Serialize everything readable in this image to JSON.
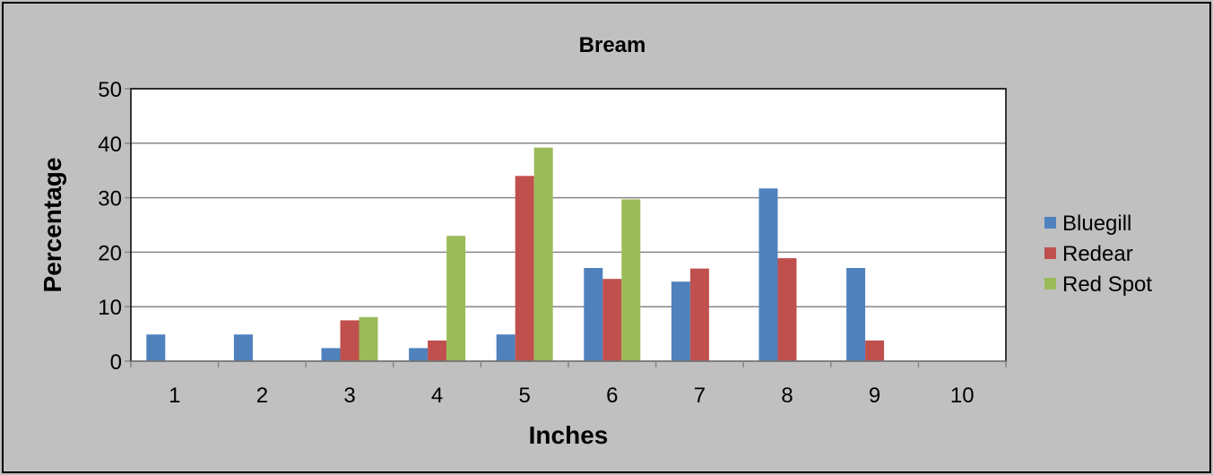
{
  "chart_data": {
    "type": "bar",
    "title": "Bream",
    "xlabel": "Inches",
    "ylabel": "Percentage",
    "categories": [
      "1",
      "2",
      "3",
      "4",
      "5",
      "6",
      "7",
      "8",
      "9",
      "10"
    ],
    "ylim": [
      0,
      50
    ],
    "yticks": [
      0,
      10,
      20,
      30,
      40,
      50
    ],
    "grid": true,
    "legend_position": "right",
    "series": [
      {
        "name": "Bluegill",
        "color": "#4f81bd",
        "values": [
          4.9,
          4.9,
          2.4,
          2.4,
          4.9,
          17.1,
          14.6,
          31.7,
          17.1,
          0
        ]
      },
      {
        "name": "Redear",
        "color": "#c0504d",
        "values": [
          0,
          0,
          7.5,
          3.8,
          34.0,
          15.1,
          17.0,
          18.9,
          3.8,
          0
        ]
      },
      {
        "name": "Red Spot",
        "color": "#9bbb59",
        "values": [
          0,
          0,
          8.1,
          23.0,
          39.2,
          29.7,
          0,
          0,
          0,
          0
        ]
      }
    ]
  }
}
